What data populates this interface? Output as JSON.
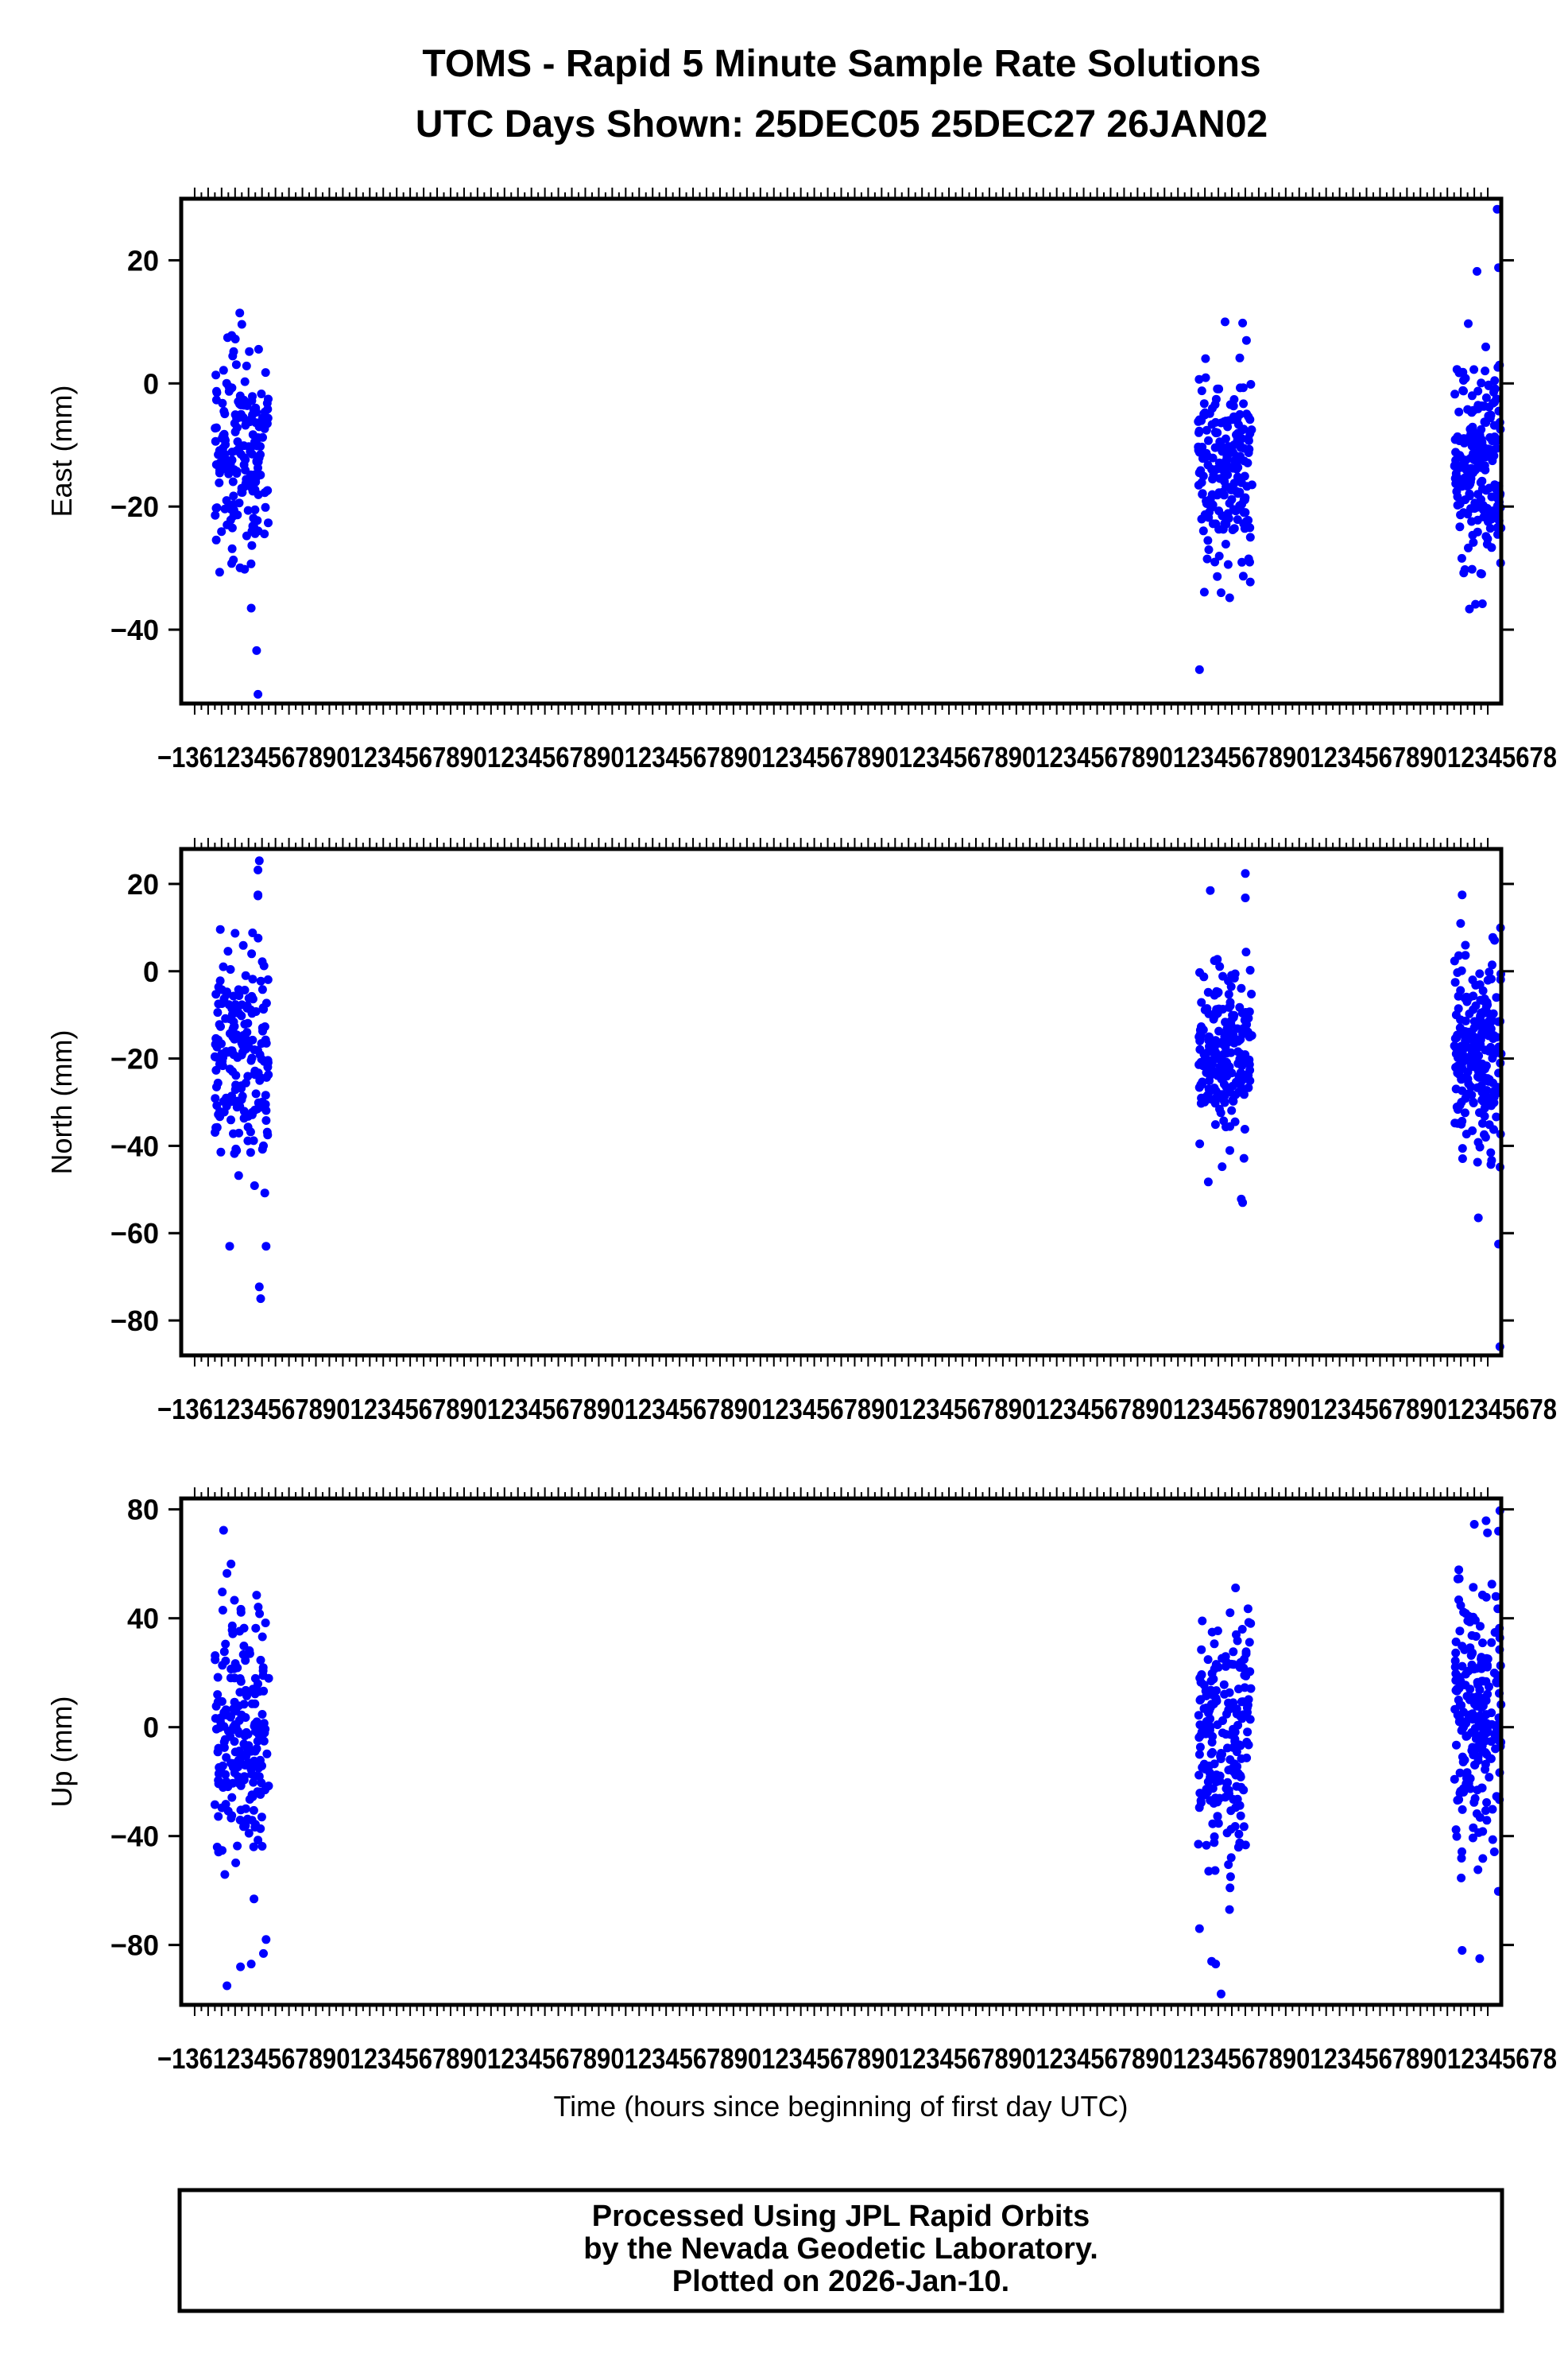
{
  "title_line1": "TOMS - Rapid 5 Minute Sample Rate Solutions",
  "title_line2": "UTC Days Shown:  25DEC05 25DEC27 26JAN02",
  "footer": {
    "line1": "Processed Using JPL Rapid Orbits",
    "line2": "by the Nevada Geodetic Laboratory.",
    "line3": "Plotted on 2026-Jan-10."
  },
  "colors": {
    "points": "#0000ff",
    "frame": "#000000"
  },
  "chart_data": [
    {
      "type": "scatter",
      "name": "east",
      "ylabel": "East (mm)",
      "xlabel": "",
      "ylim": [
        -52,
        30
      ],
      "xlim": [
        -1,
        97
      ],
      "yticks": [
        20,
        0,
        -20,
        -40
      ],
      "ytick_labels": [
        "20",
        "0",
        "−20",
        "−40"
      ],
      "x_tick_label_text": "−13612345678901234567890123456789012345678901234567890123456789012345678901234567890123456789012345678",
      "clusters": [
        {
          "x_range": [
            1.5,
            5.5
          ],
          "y_center": -12,
          "y_spread": 9,
          "count": 190,
          "outliers": [
            [
              4.6,
              -43.4
            ],
            [
              4.7,
              -50.5
            ],
            [
              3.5,
              9.6
            ],
            [
              4.2,
              -36.5
            ]
          ]
        },
        {
          "x_range": [
            74.5,
            78.5
          ],
          "y_center": -14,
          "y_spread": 8,
          "count": 200,
          "outliers": [
            [
              74.6,
              -46.5
            ],
            [
              77.8,
              9.8
            ],
            [
              76.5,
              10.0
            ],
            [
              76.2,
              -34.0
            ]
          ]
        },
        {
          "x_range": [
            93.5,
            97
          ],
          "y_center": -13,
          "y_spread": 9,
          "count": 210,
          "outliers": [
            [
              96.7,
              28.3
            ],
            [
              96.8,
              18.8
            ],
            [
              95.2,
              18.2
            ],
            [
              95.6,
              -35.8
            ]
          ]
        }
      ]
    },
    {
      "type": "scatter",
      "name": "north",
      "ylabel": "North (mm)",
      "xlabel": "",
      "ylim": [
        -88,
        28
      ],
      "xlim": [
        -1,
        97
      ],
      "yticks": [
        20,
        0,
        -20,
        -40,
        -60,
        -80
      ],
      "ytick_labels": [
        "20",
        "0",
        "−20",
        "−40",
        "−60",
        "−80"
      ],
      "x_tick_label_text": "−13612345678901234567890123456789012345678901234567890123456789012345678901234567890123456789012345678",
      "clusters": [
        {
          "x_range": [
            1.5,
            5.5
          ],
          "y_center": -18,
          "y_spread": 13,
          "count": 200,
          "outliers": [
            [
              4.8,
              25.3
            ],
            [
              4.7,
              23.2
            ],
            [
              4.9,
              -75.0
            ],
            [
              4.8,
              -72.3
            ],
            [
              2.6,
              -63.0
            ],
            [
              5.3,
              -63.0
            ],
            [
              4.7,
              17.5
            ]
          ]
        },
        {
          "x_range": [
            74.5,
            78.5
          ],
          "y_center": -18,
          "y_spread": 9,
          "count": 210,
          "outliers": [
            [
              78.0,
              22.4
            ],
            [
              77.7,
              -52.2
            ],
            [
              77.8,
              -53.0
            ],
            [
              75.4,
              18.5
            ],
            [
              78.0,
              16.8
            ]
          ]
        },
        {
          "x_range": [
            93.5,
            97
          ],
          "y_center": -17,
          "y_spread": 12,
          "count": 220,
          "outliers": [
            [
              96.9,
              -86.0
            ],
            [
              96.8,
              -62.5
            ],
            [
              94.1,
              17.5
            ],
            [
              95.3,
              -56.5
            ]
          ]
        }
      ]
    },
    {
      "type": "scatter",
      "name": "up",
      "ylabel": "Up (mm)",
      "xlabel": "Time (hours since beginning of first day UTC)",
      "ylim": [
        -102,
        84
      ],
      "xlim": [
        -1,
        97
      ],
      "yticks": [
        80,
        40,
        0,
        -40,
        -80
      ],
      "ytick_labels": [
        "80",
        "40",
        "0",
        "−40",
        "−80"
      ],
      "x_tick_label_text": "−13612345678901234567890123456789012345678901234567890123456789012345678901234567890123456789012345678",
      "clusters": [
        {
          "x_range": [
            1.5,
            5.5
          ],
          "y_center": -2,
          "y_spread": 24,
          "count": 210,
          "outliers": [
            [
              2.4,
              -95.0
            ],
            [
              3.4,
              -88.0
            ],
            [
              4.2,
              -87.0
            ],
            [
              5.3,
              -78.0
            ],
            [
              2.4,
              56.5
            ],
            [
              4.6,
              48.5
            ]
          ]
        },
        {
          "x_range": [
            74.5,
            78.5
          ],
          "y_center": -5,
          "y_spread": 22,
          "count": 210,
          "outliers": [
            [
              76.2,
              -98.0
            ],
            [
              75.8,
              -87.0
            ],
            [
              75.5,
              -86.0
            ],
            [
              74.6,
              -74.0
            ],
            [
              78.2,
              43.5
            ]
          ]
        },
        {
          "x_range": [
            93.5,
            97
          ],
          "y_center": 5,
          "y_spread": 24,
          "count": 220,
          "outliers": [
            [
              96.9,
              79.5
            ],
            [
              95.0,
              74.5
            ],
            [
              96.8,
              72.0
            ],
            [
              94.1,
              -82.0
            ],
            [
              95.4,
              -85.0
            ]
          ]
        }
      ]
    }
  ]
}
